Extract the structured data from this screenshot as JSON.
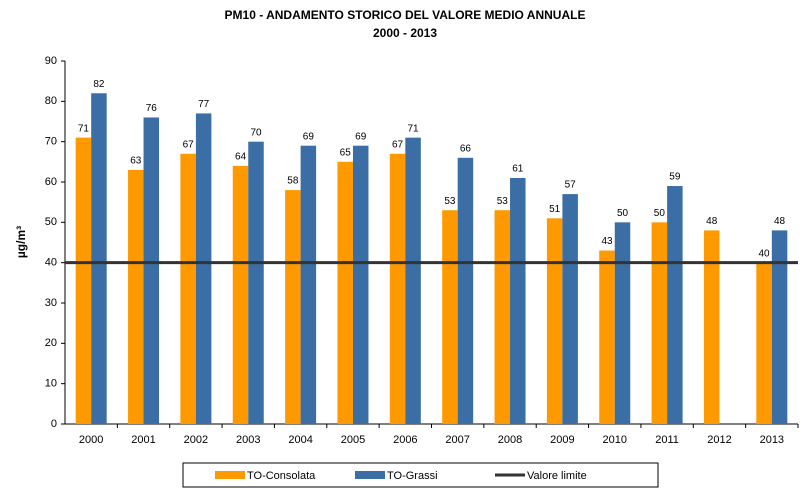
{
  "chart_data": {
    "type": "bar",
    "title": [
      "PM10  - ANDAMENTO STORICO DEL VALORE MEDIO ANNUALE",
      "2000 - 2013"
    ],
    "y_label": "µg/m³",
    "categories": [
      "2000",
      "2001",
      "2002",
      "2003",
      "2004",
      "2005",
      "2006",
      "2007",
      "2008",
      "2009",
      "2010",
      "2011",
      "2012",
      "2013"
    ],
    "series": [
      {
        "name": "TO-Consolata",
        "color": "#ff9900",
        "values": [
          71,
          63,
          67,
          64,
          58,
          65,
          67,
          53,
          53,
          51,
          43,
          50,
          48,
          40
        ]
      },
      {
        "name": "TO-Grassi",
        "color": "#3a6ea5",
        "values": [
          82,
          76,
          77,
          70,
          69,
          69,
          71,
          66,
          61,
          57,
          50,
          59,
          null,
          48
        ]
      },
      {
        "name": "Valore limite",
        "color": "#333333",
        "type": "line",
        "values": [
          40,
          40,
          40,
          40,
          40,
          40,
          40,
          40,
          40,
          40,
          40,
          40,
          40,
          40
        ]
      }
    ],
    "ylim": [
      0,
      90
    ],
    "yticks": [
      0,
      10,
      20,
      30,
      40,
      50,
      60,
      70,
      80,
      90
    ],
    "grid": false,
    "legend": "bottom"
  }
}
